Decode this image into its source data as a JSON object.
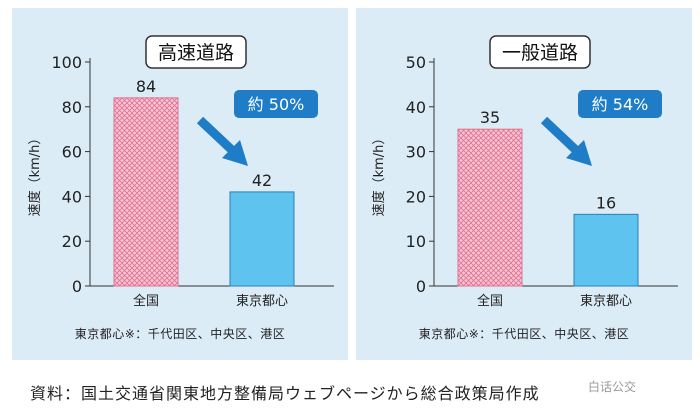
{
  "chart_data": [
    {
      "type": "bar",
      "title": "高速道路",
      "ylabel": "速度（km/h）",
      "ylim": [
        0,
        100
      ],
      "yticks": [
        0,
        20,
        40,
        60,
        80,
        100
      ],
      "categories": [
        "全国",
        "東京都心"
      ],
      "values": [
        84,
        42
      ],
      "value_labels": [
        "84",
        "42"
      ],
      "annotation": "約 50%",
      "footnote": "東京都心※：千代田区、中央区、港区"
    },
    {
      "type": "bar",
      "title": "一般道路",
      "ylabel": "速度（km/h）",
      "ylim": [
        0,
        50
      ],
      "yticks": [
        0,
        10,
        20,
        30,
        40,
        50
      ],
      "categories": [
        "全国",
        "東京都心"
      ],
      "values": [
        35,
        16
      ],
      "value_labels": [
        "35",
        "16"
      ],
      "annotation": "約 54%",
      "footnote": "東京都心※：千代田区、中央区、港区"
    }
  ],
  "colors": {
    "panel_bg": "#dcecf7",
    "national_bar_fill": "#f7c6d6",
    "national_bar_stroke": "#e0708e",
    "tokyo_bar_fill": "#5fc3f0",
    "tokyo_bar_stroke": "#2a7fb8",
    "annotation_bg": "#1e7dc6",
    "arrow": "#1e7dc6"
  },
  "source_text": "資料：国土交通省関東地方整備局ウェブページから総合政策局作成",
  "watermark": "白话公交"
}
